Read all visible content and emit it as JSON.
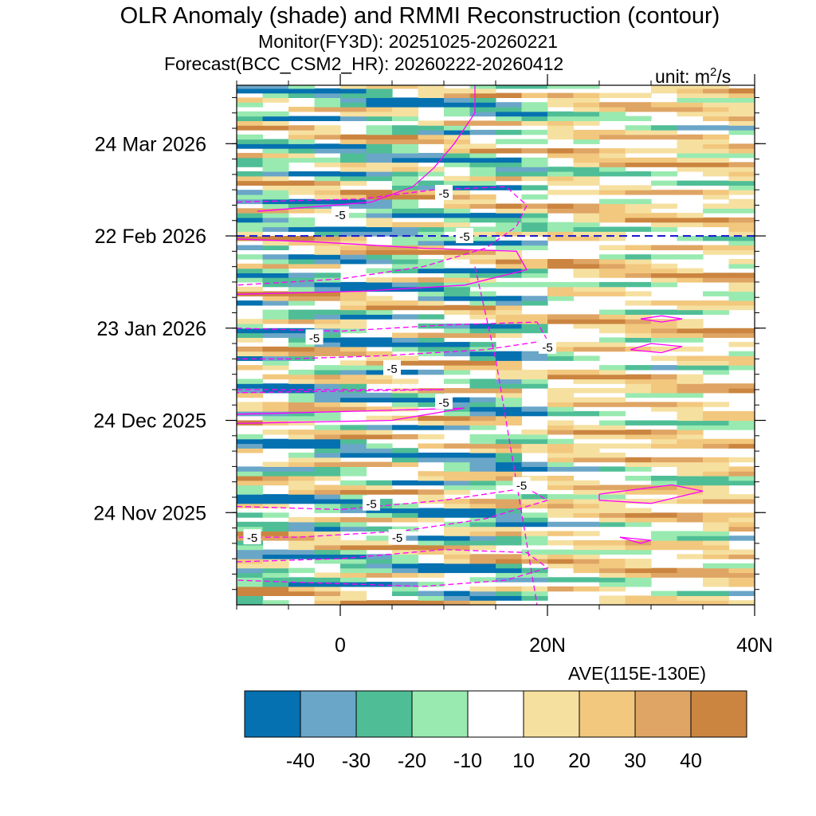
{
  "chart_data": {
    "type": "heatmap",
    "title": "OLR Anomaly (shade) and RMMI Reconstruction (contour)",
    "subtitle_monitor": "Monitor(FY3D): 20251025-20260221",
    "subtitle_forecast": "Forecast(BCC_CSM2_HR): 20260222-20260412",
    "unit_prefix": "unit: m",
    "unit_power": "2",
    "unit_suffix": "/s",
    "xlabel": "AVE(115E-130E)",
    "x_axis": {
      "range": [
        -10,
        40
      ],
      "major_ticks": [
        0,
        20,
        40
      ],
      "tick_labels": [
        "0",
        "20N",
        "40N"
      ],
      "minor_step": 5
    },
    "y_axis": {
      "range": [
        "2025-10-25",
        "2026-04-12"
      ],
      "range_days": [
        0,
        169
      ],
      "ticks": [
        {
          "day": 30,
          "label": "24 Nov 2025"
        },
        {
          "day": 60,
          "label": "24 Dec 2025"
        },
        {
          "day": 90,
          "label": "23 Jan 2026"
        },
        {
          "day": 120,
          "label": "22 Feb 2026"
        },
        {
          "day": 150,
          "label": "24 Mar 2026"
        }
      ],
      "minor_step_days": 5
    },
    "forecast_start_day": 120,
    "colorbar": {
      "levels": [
        -40,
        -30,
        -20,
        -10,
        10,
        20,
        30,
        40
      ],
      "level_labels": [
        "-40",
        "-30",
        "-20",
        "-10",
        "10",
        "20",
        "30",
        "40"
      ],
      "colors": [
        "#0571b0",
        "#6aa6c8",
        "#4fbe96",
        "#99eab0",
        "#ffffff",
        "#f6e0a0",
        "#f2c87e",
        "#dfa564",
        "#cb8540"
      ]
    },
    "contour": {
      "color": "#ff00ff",
      "labeled_value": "-5",
      "labels": [
        {
          "text": "-5",
          "lat": -8.5,
          "day": 22
        },
        {
          "text": "-5",
          "lat": 3,
          "day": 33
        },
        {
          "text": "-5",
          "lat": 5.5,
          "day": 22
        },
        {
          "text": "-5",
          "lat": 17.5,
          "day": 39
        },
        {
          "text": "-5",
          "lat": 10,
          "day": 66
        },
        {
          "text": "-5",
          "lat": 5,
          "day": 77
        },
        {
          "text": "-5",
          "lat": -2.5,
          "day": 87
        },
        {
          "text": "-5",
          "lat": 20,
          "day": 84
        },
        {
          "text": "-5",
          "lat": 0,
          "day": 127
        },
        {
          "text": "-5",
          "lat": 10,
          "day": 134
        },
        {
          "text": "-5",
          "lat": 12,
          "day": 120
        }
      ]
    }
  }
}
